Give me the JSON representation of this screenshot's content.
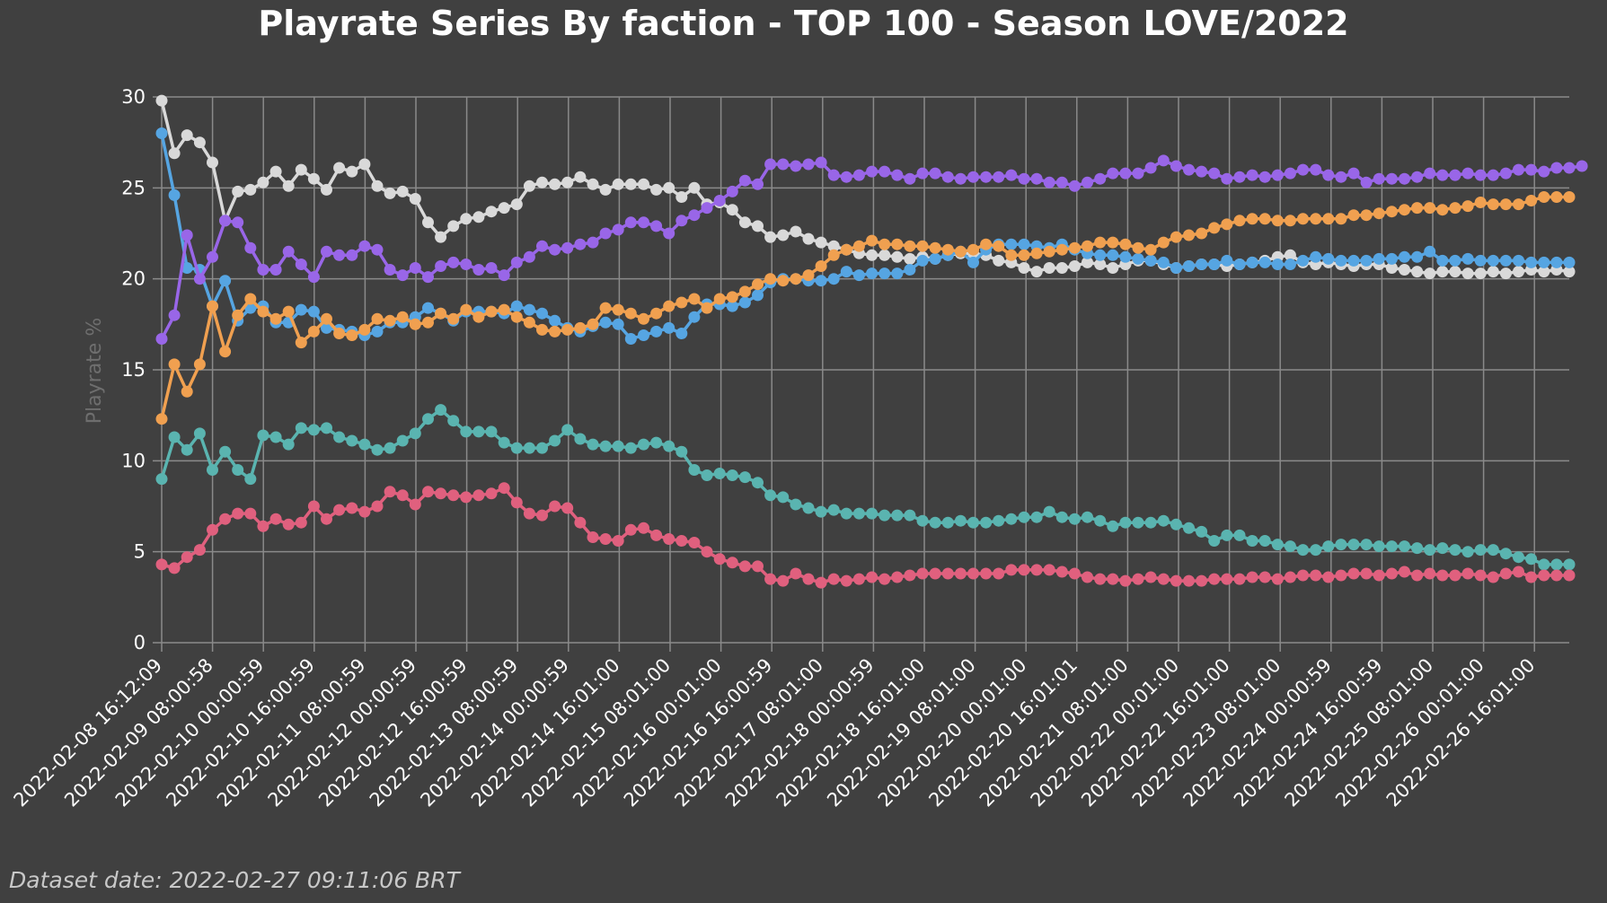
{
  "chart_data": {
    "type": "line",
    "title": "Playrate Series By faction - TOP 100 - Season LOVE/2022",
    "ylabel": "Playrate %",
    "xlabel": "",
    "ylim": [
      0,
      30
    ],
    "yticks": [
      0,
      5,
      10,
      15,
      20,
      25,
      30
    ],
    "grid": true,
    "x_tick_labels": [
      "2022-02-08 16:12:09",
      "2022-02-09 08:00:58",
      "2022-02-10 00:00:59",
      "2022-02-10 16:00:59",
      "2022-02-11 08:00:59",
      "2022-02-12 00:00:59",
      "2022-02-12 16:00:59",
      "2022-02-13 08:00:59",
      "2022-02-14 00:00:59",
      "2022-02-14 16:01:00",
      "2022-02-15 08:01:00",
      "2022-02-16 00:01:00",
      "2022-02-16 16:00:59",
      "2022-02-17 08:01:00",
      "2022-02-18 00:00:59",
      "2022-02-18 16:01:00",
      "2022-02-19 08:01:00",
      "2022-02-20 00:01:00",
      "2022-02-20 16:01:01",
      "2022-02-21 08:01:00",
      "2022-02-22 00:01:00",
      "2022-02-22 16:01:00",
      "2022-02-23 08:01:00",
      "2022-02-24 00:00:59",
      "2022-02-24 16:00:59",
      "2022-02-25 08:01:00",
      "2022-02-26 00:01:00",
      "2022-02-26 16:01:00"
    ],
    "series": [
      {
        "color": "#d9d9d9",
        "values": [
          29.8,
          26.9,
          27.9,
          27.5,
          26.4,
          23.2,
          24.8,
          24.9,
          25.3,
          25.9,
          25.1,
          26,
          25.5,
          24.9,
          26.1,
          25.9,
          26.3,
          25.1,
          24.7,
          24.8,
          24.4,
          23.1,
          22.3,
          22.9,
          23.3,
          23.4,
          23.7,
          23.9,
          24.1,
          25.1,
          25.3,
          25.2,
          25.3,
          25.6,
          25.2,
          24.9,
          25.2,
          25.2,
          25.2,
          24.9,
          25,
          24.5,
          25,
          24.1,
          24.2,
          23.8,
          23.1,
          22.9,
          22.3,
          22.4,
          22.6,
          22.2,
          22,
          21.8,
          21.6,
          21.4,
          21.3,
          21.3,
          21.2,
          21.1,
          21.2,
          21.1,
          21.3,
          21.4,
          21.4,
          21.3,
          21,
          20.9,
          20.6,
          20.4,
          20.6,
          20.6,
          20.7,
          20.9,
          20.8,
          20.6,
          20.8,
          21,
          21,
          20.8,
          20.6,
          20.7,
          20.8,
          20.8,
          20.7,
          20.8,
          20.9,
          21,
          21.2,
          21.3,
          20.9,
          20.8,
          20.9,
          20.8,
          20.7,
          20.8,
          20.8,
          20.6,
          20.5,
          20.4,
          20.3,
          20.4,
          20.4,
          20.3,
          20.3,
          20.4,
          20.3,
          20.4,
          20.5,
          20.4,
          20.5,
          20.4
        ]
      },
      {
        "color": "#56a5e2",
        "values": [
          28,
          24.6,
          20.6,
          20.5,
          18.5,
          19.9,
          17.7,
          18.4,
          18.5,
          17.6,
          17.6,
          18.3,
          18.2,
          17.3,
          17.2,
          17.1,
          16.9,
          17.1,
          17.6,
          17.6,
          17.9,
          18.4,
          18.1,
          17.7,
          18.2,
          18.2,
          18.2,
          18.1,
          18.5,
          18.3,
          18.1,
          17.7,
          17.3,
          17.1,
          17.4,
          17.6,
          17.5,
          16.7,
          16.9,
          17.1,
          17.3,
          17,
          17.9,
          18.6,
          18.6,
          18.5,
          18.7,
          19.1,
          19.8,
          20,
          20,
          19.9,
          19.9,
          20,
          20.4,
          20.2,
          20.3,
          20.3,
          20.3,
          20.5,
          21,
          21.1,
          21.3,
          21.5,
          20.9,
          21.6,
          21.9,
          21.9,
          21.9,
          21.8,
          21.7,
          21.9,
          21.6,
          21.4,
          21.3,
          21.3,
          21.2,
          21.1,
          21,
          20.9,
          20.6,
          20.7,
          20.8,
          20.8,
          21,
          20.8,
          20.9,
          20.9,
          20.8,
          20.8,
          21,
          21.2,
          21.1,
          21,
          21,
          21,
          21.1,
          21.1,
          21.2,
          21.2,
          21.5,
          21,
          21,
          21.1,
          21,
          21,
          21,
          21,
          20.9,
          20.9,
          20.9,
          20.9
        ]
      },
      {
        "color": "#9966e8",
        "values": [
          16.7,
          18,
          22.4,
          20,
          21.2,
          23.2,
          23.1,
          21.7,
          20.5,
          20.5,
          21.5,
          20.8,
          20.1,
          21.5,
          21.3,
          21.3,
          21.8,
          21.6,
          20.5,
          20.2,
          20.6,
          20.1,
          20.7,
          20.9,
          20.8,
          20.5,
          20.6,
          20.2,
          20.9,
          21.2,
          21.8,
          21.6,
          21.7,
          21.9,
          22,
          22.5,
          22.7,
          23.1,
          23.1,
          22.9,
          22.5,
          23.2,
          23.5,
          23.9,
          24.3,
          24.8,
          25.4,
          25.2,
          26.3,
          26.3,
          26.2,
          26.3,
          26.4,
          25.7,
          25.6,
          25.7,
          25.9,
          25.9,
          25.7,
          25.5,
          25.8,
          25.8,
          25.6,
          25.5,
          25.6,
          25.6,
          25.6,
          25.7,
          25.5,
          25.5,
          25.3,
          25.3,
          25.1,
          25.3,
          25.5,
          25.8,
          25.8,
          25.8,
          26.1,
          26.5,
          26.2,
          26,
          25.9,
          25.8,
          25.5,
          25.6,
          25.7,
          25.6,
          25.7,
          25.8,
          26,
          26,
          25.7,
          25.6,
          25.8,
          25.3,
          25.5,
          25.5,
          25.5,
          25.6,
          25.8,
          25.7,
          25.7,
          25.8,
          25.7,
          25.7,
          25.8,
          26,
          26,
          25.9,
          26.1,
          26.1,
          26.2
        ]
      },
      {
        "color": "#f0a050",
        "values": [
          12.3,
          15.3,
          13.8,
          15.3,
          18.5,
          16,
          18,
          18.9,
          18.2,
          17.8,
          18.2,
          16.5,
          17.1,
          17.8,
          17,
          16.9,
          17.2,
          17.8,
          17.7,
          17.9,
          17.5,
          17.6,
          18.1,
          17.8,
          18.3,
          17.9,
          18.2,
          18.3,
          17.9,
          17.6,
          17.2,
          17.1,
          17.2,
          17.3,
          17.5,
          18.4,
          18.3,
          18.1,
          17.8,
          18.1,
          18.5,
          18.7,
          18.9,
          18.4,
          18.9,
          19,
          19.3,
          19.7,
          20,
          19.9,
          20,
          20.2,
          20.7,
          21.3,
          21.6,
          21.8,
          22.1,
          21.9,
          21.9,
          21.8,
          21.8,
          21.7,
          21.6,
          21.5,
          21.6,
          21.9,
          21.8,
          21.3,
          21.3,
          21.4,
          21.5,
          21.6,
          21.7,
          21.8,
          22,
          22,
          21.9,
          21.7,
          21.6,
          22,
          22.3,
          22.4,
          22.5,
          22.8,
          23,
          23.2,
          23.3,
          23.3,
          23.2,
          23.2,
          23.3,
          23.3,
          23.3,
          23.3,
          23.5,
          23.5,
          23.6,
          23.7,
          23.8,
          23.9,
          23.9,
          23.8,
          23.9,
          24,
          24.2,
          24.1,
          24.1,
          24.1,
          24.3,
          24.5,
          24.5,
          24.5
        ]
      },
      {
        "color": "#5ab4b0",
        "values": [
          9,
          11.3,
          10.6,
          11.5,
          9.5,
          10.5,
          9.5,
          9,
          11.4,
          11.3,
          10.9,
          11.8,
          11.7,
          11.8,
          11.3,
          11.1,
          10.9,
          10.6,
          10.7,
          11.1,
          11.5,
          12.3,
          12.8,
          12.2,
          11.6,
          11.6,
          11.6,
          11,
          10.7,
          10.7,
          10.7,
          11.1,
          11.7,
          11.2,
          10.9,
          10.8,
          10.8,
          10.7,
          10.9,
          11,
          10.8,
          10.5,
          9.5,
          9.2,
          9.3,
          9.2,
          9.1,
          8.8,
          8.1,
          8,
          7.6,
          7.4,
          7.2,
          7.3,
          7.1,
          7.1,
          7.1,
          7,
          7,
          7,
          6.7,
          6.6,
          6.6,
          6.7,
          6.6,
          6.6,
          6.7,
          6.8,
          6.9,
          6.9,
          7.2,
          6.9,
          6.8,
          6.9,
          6.7,
          6.4,
          6.6,
          6.6,
          6.6,
          6.7,
          6.5,
          6.3,
          6.1,
          5.6,
          5.9,
          5.9,
          5.6,
          5.6,
          5.4,
          5.3,
          5.1,
          5.1,
          5.3,
          5.4,
          5.4,
          5.4,
          5.3,
          5.3,
          5.3,
          5.2,
          5.1,
          5.2,
          5.1,
          5,
          5.1,
          5.1,
          4.9,
          4.7,
          4.6,
          4.3,
          4.3,
          4.3
        ]
      },
      {
        "color": "#e0607e",
        "values": [
          4.3,
          4.1,
          4.7,
          5.1,
          6.2,
          6.8,
          7.1,
          7.1,
          6.4,
          6.8,
          6.5,
          6.6,
          7.5,
          6.8,
          7.3,
          7.4,
          7.2,
          7.5,
          8.3,
          8.1,
          7.6,
          8.3,
          8.2,
          8.1,
          8,
          8.1,
          8.2,
          8.5,
          7.7,
          7.1,
          7,
          7.5,
          7.4,
          6.6,
          5.8,
          5.7,
          5.6,
          6.2,
          6.3,
          5.9,
          5.7,
          5.6,
          5.5,
          5,
          4.6,
          4.4,
          4.2,
          4.2,
          3.5,
          3.4,
          3.8,
          3.5,
          3.3,
          3.5,
          3.4,
          3.5,
          3.6,
          3.5,
          3.6,
          3.7,
          3.8,
          3.8,
          3.8,
          3.8,
          3.8,
          3.8,
          3.8,
          4,
          4,
          4,
          4,
          3.9,
          3.8,
          3.6,
          3.5,
          3.5,
          3.4,
          3.5,
          3.6,
          3.5,
          3.4,
          3.4,
          3.4,
          3.5,
          3.5,
          3.5,
          3.6,
          3.6,
          3.5,
          3.6,
          3.7,
          3.7,
          3.6,
          3.7,
          3.8,
          3.8,
          3.7,
          3.8,
          3.9,
          3.7,
          3.8,
          3.7,
          3.7,
          3.8,
          3.7,
          3.6,
          3.8,
          3.9,
          3.6,
          3.7,
          3.7,
          3.7
        ]
      }
    ]
  },
  "footer": {
    "dataset_date": "Dataset date: 2022-02-27 09:11:06 BRT"
  }
}
